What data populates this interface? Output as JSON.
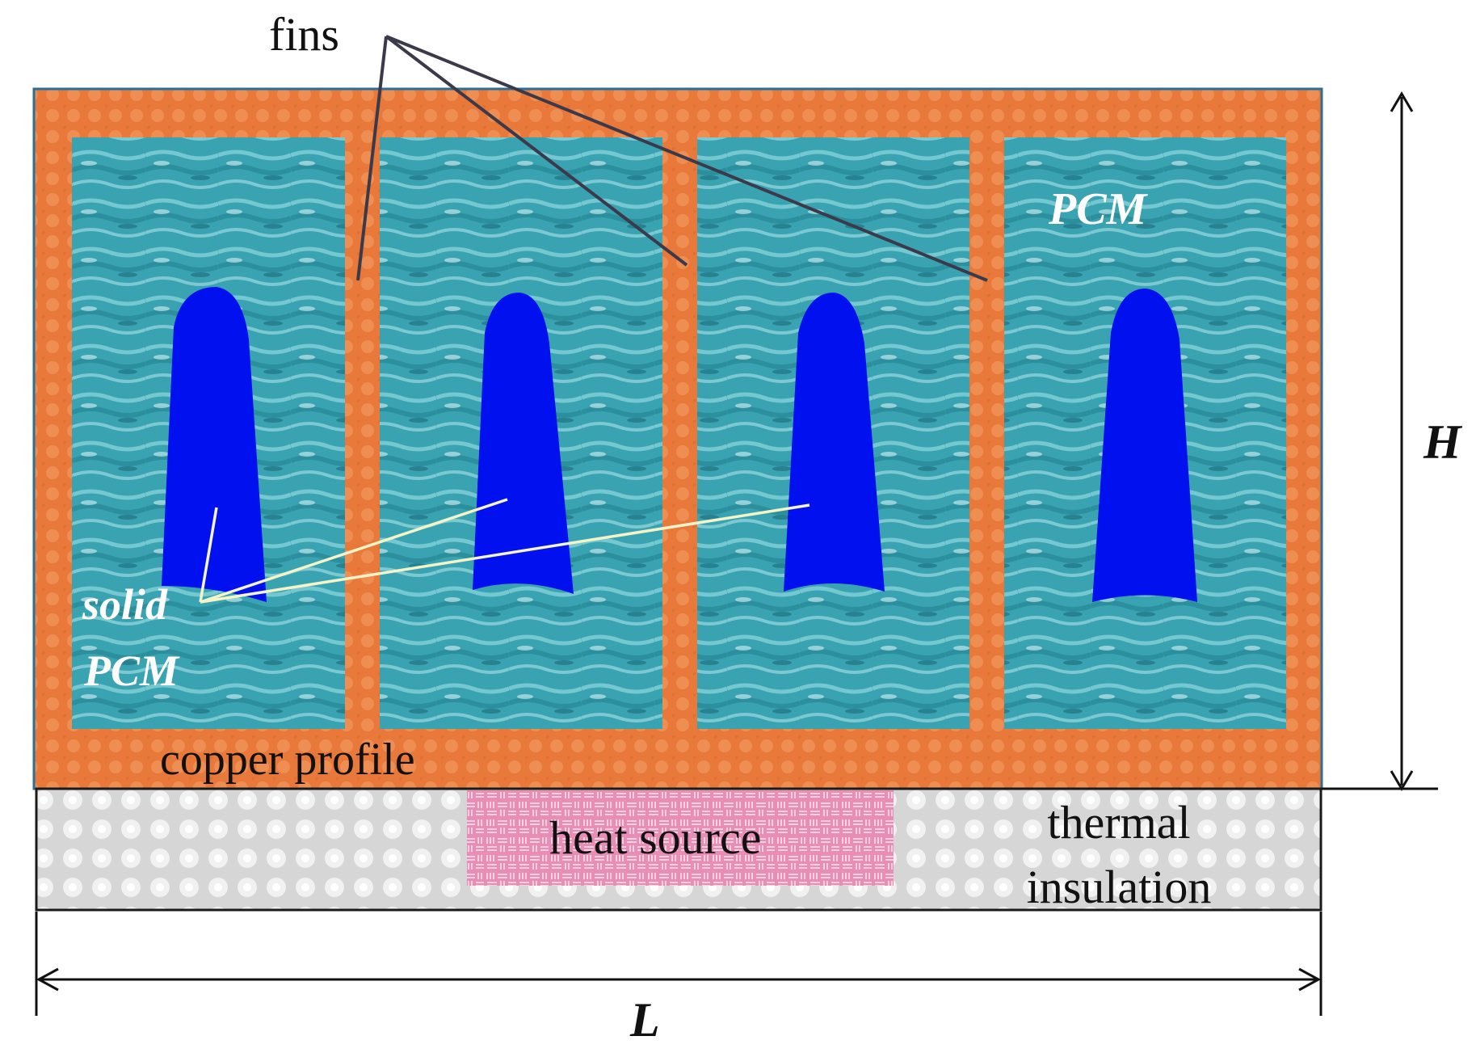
{
  "labels": {
    "fins": "fins",
    "pcm": "PCM",
    "solid_pcm_line1": "solid",
    "solid_pcm_line2": "PCM",
    "copper_profile": "copper profile",
    "heat_source": "heat source",
    "thermal_insulation_line1": "thermal",
    "thermal_insulation_line2": "insulation",
    "height": "H",
    "length": "L"
  },
  "colors": {
    "copper": "#e8793a",
    "pcm_liquid": "#3aa3b2",
    "solid_pcm": "#0010ee",
    "heat_source": "#e98db4",
    "insulation": "#d9d9d9",
    "outline": "#1a1a1a"
  },
  "cells": [
    {
      "id": "cell-1",
      "solid_shape": "solid-pcm-1"
    },
    {
      "id": "cell-2",
      "solid_shape": "solid-pcm-2"
    },
    {
      "id": "cell-3",
      "solid_shape": "solid-pcm-3"
    },
    {
      "id": "cell-4",
      "solid_shape": "solid-pcm-4"
    }
  ]
}
